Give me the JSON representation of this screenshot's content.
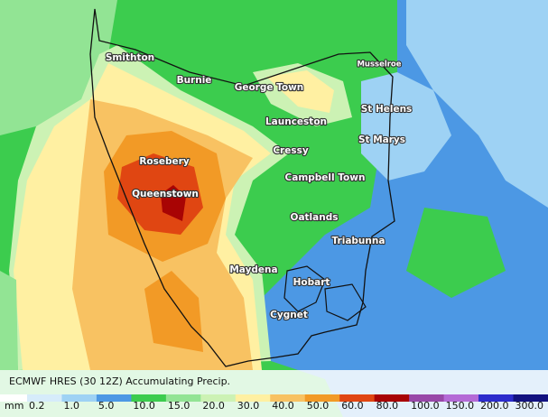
{
  "map": {
    "places": [
      {
        "name": "Smithton"
      },
      {
        "name": "Burnie"
      },
      {
        "name": "George Town"
      },
      {
        "name": "Musselroe"
      },
      {
        "name": "Launceston"
      },
      {
        "name": "St Helens"
      },
      {
        "name": "St Marys"
      },
      {
        "name": "Cressy"
      },
      {
        "name": "Rosebery"
      },
      {
        "name": "Campbell Town"
      },
      {
        "name": "Queenstown"
      },
      {
        "name": "Oatlands"
      },
      {
        "name": "Triabunna"
      },
      {
        "name": "Maydena"
      },
      {
        "name": "Hobart"
      },
      {
        "name": "Cygnet"
      }
    ],
    "legend": {
      "title": "ECMWF HRES (30 12Z) Accumulating Precip.",
      "unit": "mm",
      "base_color": "#ffffff",
      "bins": [
        {
          "label": "0.2",
          "color": "#d6ecfa"
        },
        {
          "label": "1.0",
          "color": "#9ed2f4"
        },
        {
          "label": "5.0",
          "color": "#4c98e4"
        },
        {
          "label": "10.0",
          "color": "#3ccc4e"
        },
        {
          "label": "15.0",
          "color": "#92e494"
        },
        {
          "label": "20.0",
          "color": "#ccf2b4"
        },
        {
          "label": "30.0",
          "color": "#fff0a2"
        },
        {
          "label": "40.0",
          "color": "#f8c262"
        },
        {
          "label": "50.0",
          "color": "#f29a26"
        },
        {
          "label": "60.0",
          "color": "#e04612"
        },
        {
          "label": "80.0",
          "color": "#a80404"
        },
        {
          "label": "100.0",
          "color": "#9848a8"
        },
        {
          "label": "150.0",
          "color": "#b46ad6"
        },
        {
          "label": "200.0",
          "color": "#2c2ccc"
        },
        {
          "label": "300.0",
          "color": "#121280"
        }
      ]
    }
  }
}
